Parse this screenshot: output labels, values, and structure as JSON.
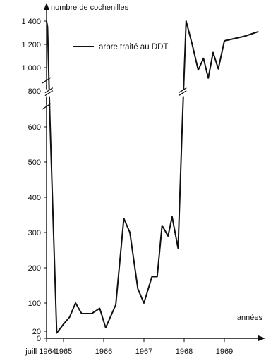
{
  "chart_data": {
    "type": "line",
    "title": "",
    "ylabel": "nombre de cochenilles",
    "xlabel": "années",
    "y_break": [
      700,
      750
    ],
    "ylim": [
      0,
      1450
    ],
    "xlim": [
      1964.5,
      1969.9
    ],
    "y_ticks": [
      {
        "value": 0,
        "label": "0"
      },
      {
        "value": 20,
        "label": "20"
      },
      {
        "value": 100,
        "label": "100"
      },
      {
        "value": 200,
        "label": "200"
      },
      {
        "value": 300,
        "label": "300"
      },
      {
        "value": 400,
        "label": "400"
      },
      {
        "value": 500,
        "label": "500"
      },
      {
        "value": 600,
        "label": "600"
      },
      {
        "value": 800,
        "label": "800"
      },
      {
        "value": 1000,
        "label": "1 000"
      },
      {
        "value": 1200,
        "label": "1 200"
      },
      {
        "value": 1400,
        "label": "1 400"
      }
    ],
    "x_ticks": [
      {
        "value": 1964.5,
        "label": "juill 1964"
      },
      {
        "value": 1965,
        "label": "1965"
      },
      {
        "value": 1966,
        "label": "1966"
      },
      {
        "value": 1967,
        "label": "1967"
      },
      {
        "value": 1968,
        "label": "1968"
      },
      {
        "value": 1969,
        "label": "1969"
      }
    ],
    "series": [
      {
        "name": "arbre traité au DDT",
        "color": "#111111",
        "points": [
          [
            1964.5,
            1400
          ],
          [
            1964.53,
            1350
          ],
          [
            1964.6,
            620
          ],
          [
            1964.8,
            15
          ],
          [
            1965.0,
            40
          ],
          [
            1965.15,
            60
          ],
          [
            1965.3,
            100
          ],
          [
            1965.45,
            70
          ],
          [
            1965.7,
            70
          ],
          [
            1965.9,
            85
          ],
          [
            1966.05,
            30
          ],
          [
            1966.3,
            95
          ],
          [
            1966.5,
            340
          ],
          [
            1966.65,
            300
          ],
          [
            1966.85,
            140
          ],
          [
            1967.0,
            100
          ],
          [
            1967.2,
            175
          ],
          [
            1967.33,
            175
          ],
          [
            1967.45,
            320
          ],
          [
            1967.6,
            290
          ],
          [
            1967.7,
            345
          ],
          [
            1967.85,
            255
          ],
          [
            1967.95,
            600
          ],
          [
            1968.05,
            1400
          ],
          [
            1968.2,
            1200
          ],
          [
            1968.35,
            980
          ],
          [
            1968.48,
            1080
          ],
          [
            1968.6,
            910
          ],
          [
            1968.72,
            1130
          ],
          [
            1968.85,
            990
          ],
          [
            1969.0,
            1230
          ],
          [
            1969.5,
            1270
          ],
          [
            1969.85,
            1310
          ]
        ]
      }
    ],
    "grid": false,
    "legend_position": "top"
  }
}
